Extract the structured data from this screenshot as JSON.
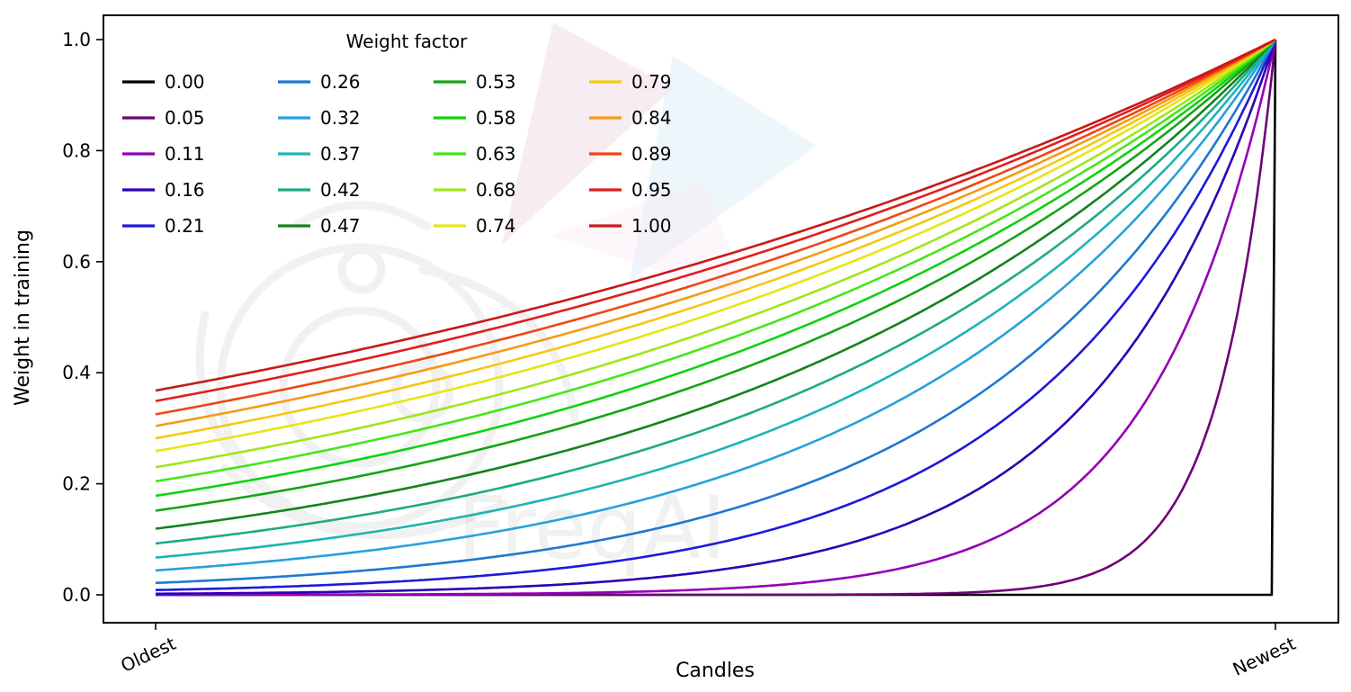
{
  "figure": {
    "background": "#ffffff",
    "watermark_text": "FreqAI"
  },
  "chart_data": {
    "type": "line",
    "title": "",
    "legend_title": "Weight factor",
    "legend_position": "upper left",
    "legend_columns": 4,
    "legend_rows": 5,
    "xlabel": "Candles",
    "ylabel": "Weight in training",
    "x_tick_labels": [
      "Oldest",
      "Newest"
    ],
    "y_ticks": [
      0.0,
      0.2,
      0.4,
      0.6,
      0.8,
      1.0
    ],
    "ylim": [
      0.0,
      1.0
    ],
    "x_axis_note": "x is candle age normalized 0 (Oldest) to 1 (Newest), no numeric ticks",
    "curve_formula": "weight = exp(-(1 - x) / weight_factor); weight_factor = 0 gives weight 0 everywhere except 1 at the newest candle",
    "grid": false,
    "series": [
      {
        "label": "0.00",
        "factor": 0.0,
        "color": "#000000"
      },
      {
        "label": "0.05",
        "factor": 0.05,
        "color": "#6e0078"
      },
      {
        "label": "0.11",
        "factor": 0.11,
        "color": "#9400b4"
      },
      {
        "label": "0.16",
        "factor": 0.16,
        "color": "#2d00b4"
      },
      {
        "label": "0.21",
        "factor": 0.21,
        "color": "#1e19dc"
      },
      {
        "label": "0.26",
        "factor": 0.26,
        "color": "#1e78d2"
      },
      {
        "label": "0.32",
        "factor": 0.32,
        "color": "#28a0dc"
      },
      {
        "label": "0.37",
        "factor": 0.37,
        "color": "#1eb4b4"
      },
      {
        "label": "0.42",
        "factor": 0.42,
        "color": "#1eaa87"
      },
      {
        "label": "0.47",
        "factor": 0.47,
        "color": "#14821e"
      },
      {
        "label": "0.53",
        "factor": 0.53,
        "color": "#14a514"
      },
      {
        "label": "0.58",
        "factor": 0.58,
        "color": "#0fd20f"
      },
      {
        "label": "0.63",
        "factor": 0.63,
        "color": "#46e619"
      },
      {
        "label": "0.68",
        "factor": 0.68,
        "color": "#a0e619"
      },
      {
        "label": "0.74",
        "factor": 0.74,
        "color": "#e6e614"
      },
      {
        "label": "0.79",
        "factor": 0.79,
        "color": "#f5c814"
      },
      {
        "label": "0.84",
        "factor": 0.84,
        "color": "#f59b14"
      },
      {
        "label": "0.89",
        "factor": 0.89,
        "color": "#f04614"
      },
      {
        "label": "0.95",
        "factor": 0.95,
        "color": "#e11e1e"
      },
      {
        "label": "1.00",
        "factor": 1.0,
        "color": "#c81919"
      }
    ],
    "series_left_edge_values_note": "at x=0 each curve equals exp(-1/weight_factor), e.g. 0.37 for factor 1.00, ~0 for factors below 0.2"
  }
}
